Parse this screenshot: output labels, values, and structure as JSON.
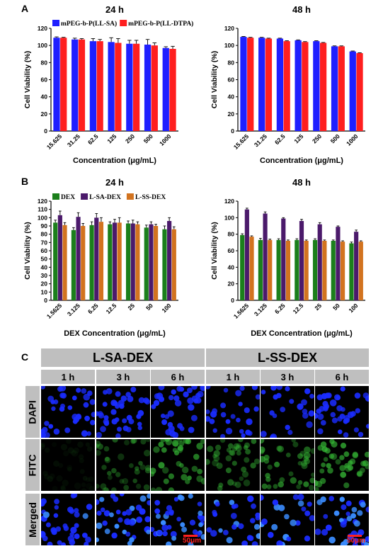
{
  "panels": {
    "A": "A",
    "B": "B",
    "C": "C"
  },
  "chart_data": [
    {
      "id": "A-24h",
      "type": "bar",
      "title": "24 h",
      "xlabel": "Concentration (μg/mL)",
      "ylabel": "Cell Viability (%)",
      "ylim": [
        0,
        120
      ],
      "yticks": [
        0,
        20,
        40,
        60,
        80,
        100,
        120
      ],
      "categories": [
        "15.625",
        "31.25",
        "62.5",
        "125",
        "250",
        "500",
        "1000"
      ],
      "legend_placement": "top",
      "series": [
        {
          "name": "mPEG-b-P(LL-SA)",
          "color": "#1f1fff",
          "values": [
            109,
            107,
            105,
            104,
            102,
            101,
            97
          ],
          "errors": [
            1,
            1.5,
            3,
            5,
            4,
            6,
            1.5
          ]
        },
        {
          "name": "mPEG-b-P(LL-DTPA)",
          "color": "#ff1f1f",
          "values": [
            109,
            107,
            105,
            103,
            102,
            100,
            96
          ],
          "errors": [
            0.5,
            1,
            2,
            5,
            4,
            3,
            3
          ]
        }
      ]
    },
    {
      "id": "A-48h",
      "type": "bar",
      "title": "48 h",
      "xlabel": "Concentration (μg/mL)",
      "ylabel": "Cell Viability (%)",
      "ylim": [
        0,
        120
      ],
      "yticks": [
        0,
        20,
        40,
        60,
        80,
        100,
        120
      ],
      "categories": [
        "15.625",
        "31.25",
        "62.5",
        "125",
        "250",
        "500",
        "1000"
      ],
      "series": [
        {
          "name": "mPEG-b-P(LL-SA)",
          "color": "#1f1fff",
          "values": [
            110,
            109,
            108,
            106,
            105,
            99,
            93
          ],
          "errors": [
            0.5,
            0.5,
            0.5,
            0.5,
            0.5,
            0.5,
            0.5
          ]
        },
        {
          "name": "mPEG-b-P(LL-DTPA)",
          "color": "#ff1f1f",
          "values": [
            109,
            108,
            105,
            104,
            103,
            99,
            91
          ],
          "errors": [
            0.5,
            0.5,
            0.5,
            0.5,
            0.5,
            0.5,
            0.5
          ]
        }
      ]
    },
    {
      "id": "B-24h",
      "type": "bar",
      "title": "24 h",
      "xlabel": "DEX Concentration (μg/mL)",
      "ylabel": "Cell Viability (%)",
      "ylim": [
        0,
        120
      ],
      "yticks": [
        0,
        10,
        20,
        30,
        40,
        50,
        60,
        70,
        80,
        90,
        100,
        110,
        120
      ],
      "categories": [
        "1.5625",
        "3.125",
        "6.25",
        "12.5",
        "25",
        "50",
        "100"
      ],
      "legend_placement": "top",
      "series": [
        {
          "name": "DEX",
          "color": "#1b7f1b",
          "values": [
            94,
            85,
            91,
            92,
            93,
            88,
            86
          ],
          "errors": [
            3,
            3,
            4,
            3,
            3,
            3,
            4
          ]
        },
        {
          "name": "L-SA-DEX",
          "color": "#4b1a6b",
          "values": [
            103,
            101,
            100,
            94,
            93,
            92,
            96
          ],
          "errors": [
            5,
            5,
            5,
            4,
            4,
            3,
            4
          ]
        },
        {
          "name": "L-SS-DEX",
          "color": "#d2731f",
          "values": [
            91,
            90,
            95,
            94,
            92,
            90,
            86
          ],
          "errors": [
            3,
            3,
            5,
            6,
            3,
            2,
            3
          ]
        }
      ]
    },
    {
      "id": "B-48h",
      "type": "bar",
      "title": "48 h",
      "xlabel": "DEX Concentration (μg/mL)",
      "ylabel": "Cell Viability (%)",
      "ylim": [
        0,
        120
      ],
      "yticks": [
        0,
        20,
        40,
        60,
        80,
        100,
        120
      ],
      "categories": [
        "1.5625",
        "3.125",
        "6.25",
        "12.5",
        "25",
        "50",
        "100"
      ],
      "series": [
        {
          "name": "DEX",
          "color": "#1b7f1b",
          "values": [
            79,
            73,
            73,
            73,
            73,
            72,
            69
          ],
          "errors": [
            1.5,
            2,
            1.5,
            1.5,
            1.5,
            1,
            1.5
          ]
        },
        {
          "name": "L-SA-DEX",
          "color": "#4b1a6b",
          "values": [
            110,
            105,
            99,
            96,
            92,
            89,
            83
          ],
          "errors": [
            1.5,
            2,
            1,
            2,
            2,
            1,
            2
          ]
        },
        {
          "name": "L-SS-DEX",
          "color": "#d2731f",
          "values": [
            77,
            73,
            72,
            72,
            72,
            71,
            71
          ],
          "errors": [
            1,
            1,
            1,
            1,
            1,
            1,
            1
          ]
        }
      ]
    }
  ],
  "micro": {
    "groups": [
      "L-SA-DEX",
      "L-SS-DEX"
    ],
    "times": [
      "1 h",
      "3 h",
      "6 h"
    ],
    "rows": [
      "DAPI",
      "FITC",
      "Merged"
    ],
    "scale_label": "50μm"
  },
  "colors": {
    "dapi": "#1a2cff",
    "fitc": "#35b835",
    "header_gray": "#bfbfbf",
    "scale": "#ff2020"
  }
}
